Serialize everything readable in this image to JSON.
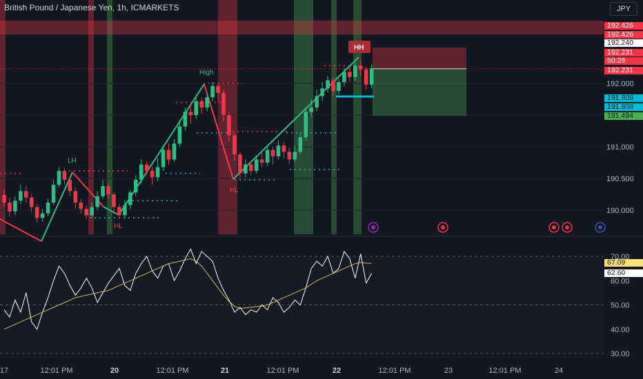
{
  "header": {
    "title": "British Pound / Japanese Yen, 1h, ICMARKETS",
    "currency_button": "JPY"
  },
  "price_tags": [
    {
      "value": "192.426",
      "bg": "#f23645",
      "fg": "#ffffff"
    },
    {
      "value": "192.426",
      "bg": "#f23645",
      "fg": "#ffffff"
    },
    {
      "value": "192.240",
      "bg": "#ffffff",
      "fg": "#131722"
    },
    {
      "value": "192.231",
      "bg": "#f23645",
      "fg": "#ffffff"
    },
    {
      "value": "50:28",
      "bg": "#f23645",
      "fg": "#ffffff"
    },
    {
      "value": "192.231",
      "bg": "#f23645",
      "fg": "#ffffff"
    },
    {
      "value": "191.808",
      "bg": "#00bcd4",
      "fg": "#131722"
    },
    {
      "value": "191.808",
      "bg": "#00bcd4",
      "fg": "#131722"
    },
    {
      "value": "191.494",
      "bg": "#4caf50",
      "fg": "#131722"
    }
  ],
  "rsi_tags": [
    {
      "value": "67.09",
      "bg": "#f7e27a",
      "fg": "#131722"
    },
    {
      "value": "62.60",
      "bg": "#ffffff",
      "fg": "#131722"
    }
  ],
  "chart_data": {
    "type": "candlestick",
    "price_axis": {
      "ticks": [
        "192.000",
        "191.500",
        "191.000",
        "190.500",
        "190.000"
      ]
    },
    "rsi_axis": {
      "ticks": [
        "70.00",
        "60.00",
        "50.00",
        "40.00",
        "30.00"
      ],
      "bands": [
        70,
        30
      ]
    },
    "time_axis": {
      "ticks": [
        "17",
        "12:01 PM",
        "20",
        "12:01 PM",
        "21",
        "12:01 PM",
        "22",
        "12:01 PM",
        "23",
        "12:01 PM",
        "24"
      ],
      "day_labels": [
        "20",
        "21",
        "22"
      ]
    },
    "structure_labels": [
      {
        "text": "LH",
        "color": "#2ebd85"
      },
      {
        "text": "HL",
        "color": "#f23645"
      },
      {
        "text": "High",
        "color": "#2ebd85"
      },
      {
        "text": "HL",
        "color": "#f23645"
      },
      {
        "text": "HH",
        "color": "#ffffff"
      }
    ],
    "candles": [
      [
        190.24,
        190.12,
        190.33,
        190.05
      ],
      [
        190.12,
        189.98,
        190.2,
        189.9
      ],
      [
        189.98,
        190.15,
        190.22,
        189.92
      ],
      [
        190.15,
        190.3,
        190.4,
        190.1
      ],
      [
        190.3,
        190.2,
        190.38,
        190.12
      ],
      [
        190.2,
        190.05,
        190.25,
        189.96
      ],
      [
        190.05,
        189.88,
        190.1,
        189.8
      ],
      [
        189.88,
        189.95,
        190.02,
        189.82
      ],
      [
        189.95,
        190.12,
        190.18,
        189.9
      ],
      [
        190.12,
        190.4,
        190.48,
        190.08
      ],
      [
        190.4,
        190.62,
        190.68,
        190.36
      ],
      [
        190.62,
        190.48,
        190.66,
        190.4
      ],
      [
        190.48,
        190.3,
        190.52,
        190.22
      ],
      [
        190.3,
        190.12,
        190.36,
        190.02
      ],
      [
        190.12,
        190.02,
        190.18,
        189.95
      ],
      [
        190.02,
        189.92,
        190.08,
        189.86
      ],
      [
        189.92,
        190.05,
        190.12,
        189.88
      ],
      [
        190.05,
        190.22,
        190.3,
        190.0
      ],
      [
        190.22,
        190.38,
        190.48,
        190.18
      ],
      [
        190.38,
        190.25,
        190.42,
        190.18
      ],
      [
        190.25,
        190.05,
        190.28,
        189.98
      ],
      [
        190.05,
        189.92,
        190.1,
        189.86
      ],
      [
        189.92,
        190.08,
        190.16,
        189.88
      ],
      [
        190.08,
        190.28,
        190.32,
        190.02
      ],
      [
        190.28,
        190.48,
        190.55,
        190.22
      ],
      [
        190.48,
        190.72,
        190.8,
        190.42
      ],
      [
        190.72,
        190.62,
        190.78,
        190.55
      ],
      [
        190.62,
        190.52,
        190.68,
        190.4
      ],
      [
        190.52,
        190.68,
        190.82,
        190.46
      ],
      [
        190.68,
        190.95,
        191.02,
        190.62
      ],
      [
        190.95,
        190.8,
        191.05,
        190.72
      ],
      [
        190.8,
        191.05,
        191.12,
        190.76
      ],
      [
        191.05,
        191.32,
        191.42,
        191.0
      ],
      [
        191.32,
        191.55,
        191.62,
        191.26
      ],
      [
        191.55,
        191.5,
        191.66,
        191.36
      ],
      [
        191.5,
        191.72,
        191.8,
        191.44
      ],
      [
        191.72,
        191.62,
        191.78,
        191.52
      ],
      [
        191.62,
        191.78,
        191.84,
        191.56
      ],
      [
        191.78,
        191.96,
        192.02,
        191.72
      ],
      [
        191.96,
        191.85,
        192.0,
        191.7
      ],
      [
        191.85,
        191.5,
        191.9,
        191.4
      ],
      [
        191.5,
        191.18,
        191.55,
        191.08
      ],
      [
        191.18,
        190.88,
        191.22,
        190.78
      ],
      [
        190.88,
        190.58,
        190.92,
        190.48
      ],
      [
        190.58,
        190.72,
        190.8,
        190.52
      ],
      [
        190.72,
        190.62,
        190.78,
        190.55
      ],
      [
        190.62,
        190.8,
        190.86,
        190.58
      ],
      [
        190.8,
        190.75,
        190.92,
        190.68
      ],
      [
        190.75,
        190.95,
        191.02,
        190.7
      ],
      [
        190.95,
        190.85,
        191.0,
        190.72
      ],
      [
        190.85,
        191.02,
        191.1,
        190.8
      ],
      [
        191.02,
        190.92,
        191.08,
        190.82
      ],
      [
        190.92,
        190.8,
        190.98,
        190.72
      ],
      [
        190.8,
        190.92,
        191.02,
        190.76
      ],
      [
        190.92,
        191.15,
        191.22,
        190.88
      ],
      [
        191.15,
        191.55,
        191.62,
        191.1
      ],
      [
        191.55,
        191.62,
        191.75,
        191.48
      ],
      [
        191.62,
        191.8,
        191.9,
        191.56
      ],
      [
        191.8,
        191.92,
        192.02,
        191.72
      ],
      [
        191.92,
        192.05,
        192.12,
        191.86
      ],
      [
        192.05,
        191.88,
        192.1,
        191.8
      ],
      [
        191.88,
        192.02,
        192.08,
        191.82
      ],
      [
        192.02,
        192.18,
        192.24,
        191.96
      ],
      [
        192.18,
        192.1,
        192.26,
        192.02
      ],
      [
        192.1,
        192.28,
        192.34,
        192.04
      ],
      [
        192.28,
        192.22,
        192.36,
        192.12
      ],
      [
        192.22,
        191.98,
        192.26,
        191.9
      ],
      [
        191.98,
        192.24,
        192.3,
        191.92
      ]
    ],
    "rsi": [
      48,
      45,
      52,
      47,
      55,
      43,
      40,
      47,
      53,
      60,
      66,
      63,
      58,
      54,
      57,
      61,
      57,
      51,
      55,
      59,
      62,
      65,
      58,
      56,
      63,
      67,
      70,
      64,
      61,
      66,
      67,
      60,
      64,
      69,
      73,
      67,
      72,
      70,
      68,
      61,
      56,
      52,
      47,
      49,
      46,
      48,
      47,
      50,
      48,
      53,
      51,
      47,
      49,
      52,
      50,
      57,
      65,
      68,
      66,
      70,
      63,
      65,
      72,
      69,
      61,
      71,
      59,
      63
    ],
    "rsi_ma": [
      40,
      41,
      42,
      43,
      44,
      45,
      46,
      47,
      48,
      49,
      50,
      51,
      52,
      53,
      53.5,
      54,
      54.5,
      55,
      55.5,
      56,
      57,
      58,
      59,
      60,
      61,
      62,
      63,
      64,
      65,
      66,
      67,
      67.5,
      68,
      68.5,
      69,
      68,
      66,
      63,
      60,
      57,
      54,
      51.5,
      49.5,
      48.5,
      48.8,
      49,
      49.3,
      49.6,
      50,
      51,
      52,
      53,
      54,
      55,
      56,
      57,
      58.5,
      60,
      61,
      62,
      63,
      64,
      65,
      66,
      67,
      67.5,
      67.2,
      67.09
    ],
    "trade_box": {
      "entry": 192.231,
      "stop": 192.426,
      "target": 191.494,
      "ref_line": 191.808
    }
  }
}
